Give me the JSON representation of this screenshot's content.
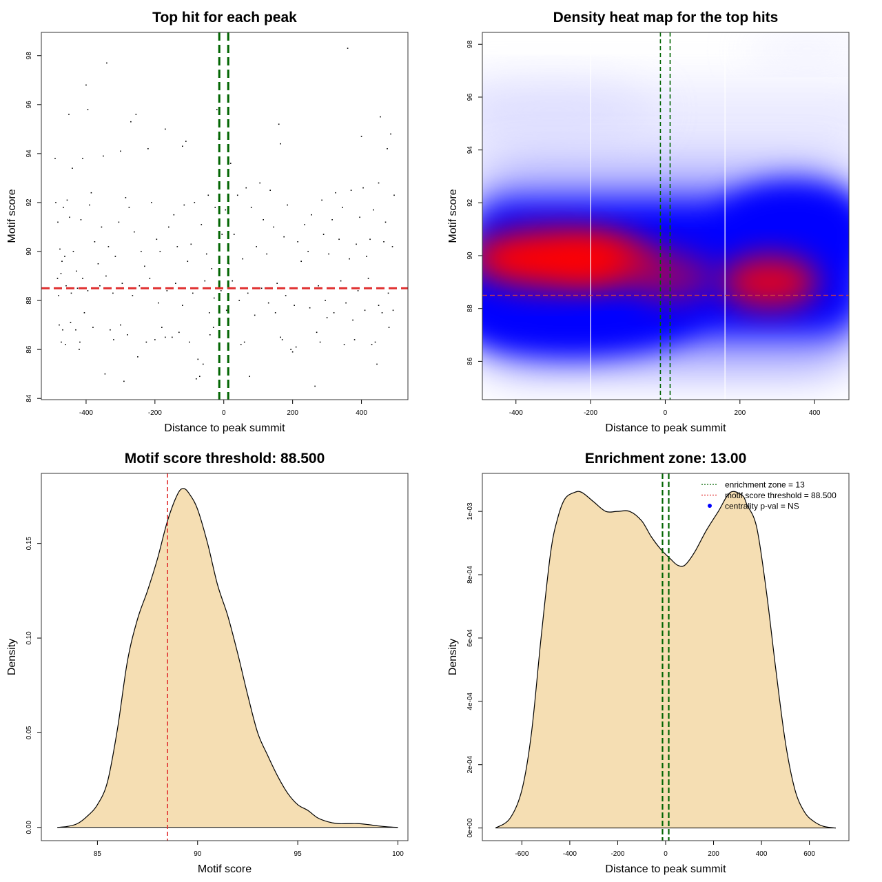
{
  "chart_data": [
    {
      "id": "scatter",
      "type": "scatter",
      "title": "Top hit for each peak",
      "xlabel": "Distance to peak summit",
      "ylabel": "Motif score",
      "xlim": [
        -530,
        535
      ],
      "ylim": [
        83.95,
        98.95
      ],
      "xticks": [
        -400,
        -200,
        0,
        200,
        400
      ],
      "xtick_labels": [
        "-400",
        "-200",
        "0",
        "200",
        "400"
      ],
      "yticks": [
        84,
        86,
        88,
        90,
        92,
        94,
        96,
        98
      ],
      "ytick_labels": [
        "84",
        "86",
        "88",
        "90",
        "92",
        "94",
        "96",
        "98"
      ],
      "vlines": [
        {
          "x": -13,
          "color": "#006400"
        },
        {
          "x": 13,
          "color": "#006400"
        }
      ],
      "hlines": [
        {
          "y": 88.5,
          "color": "#e03030"
        }
      ],
      "points": [
        [
          -490,
          93.8
        ],
        [
          -470,
          89.6
        ],
        [
          -450,
          95.6
        ],
        [
          -440,
          93.4
        ],
        [
          -410,
          93.8
        ],
        [
          -400,
          96.8
        ],
        [
          -395,
          95.8
        ],
        [
          -385,
          92.4
        ],
        [
          -350,
          93.9
        ],
        [
          -340,
          97.7
        ],
        [
          -300,
          94.1
        ],
        [
          -270,
          95.3
        ],
        [
          -255,
          95.6
        ],
        [
          -220,
          94.2
        ],
        [
          -170,
          95.0
        ],
        [
          -120,
          94.3
        ],
        [
          -110,
          94.5
        ],
        [
          -20,
          95.8
        ],
        [
          -15,
          94.6
        ],
        [
          20,
          93.6
        ],
        [
          160,
          95.2
        ],
        [
          165,
          94.4
        ],
        [
          360,
          98.3
        ],
        [
          400,
          94.7
        ],
        [
          455,
          95.5
        ],
        [
          475,
          94.2
        ],
        [
          485,
          94.8
        ],
        [
          -480,
          88.2
        ],
        [
          -478,
          87.0
        ],
        [
          -472,
          86.3
        ],
        [
          -468,
          86.8
        ],
        [
          -460,
          86.2
        ],
        [
          -445,
          87.1
        ],
        [
          -430,
          86.8
        ],
        [
          -420,
          86.0
        ],
        [
          -418,
          86.3
        ],
        [
          -405,
          87.5
        ],
        [
          -380,
          86.9
        ],
        [
          -345,
          85.0
        ],
        [
          -330,
          86.8
        ],
        [
          -320,
          86.4
        ],
        [
          -300,
          87.0
        ],
        [
          -290,
          84.7
        ],
        [
          -280,
          86.6
        ],
        [
          -250,
          85.7
        ],
        [
          -225,
          86.3
        ],
        [
          -200,
          86.4
        ],
        [
          -180,
          86.9
        ],
        [
          -170,
          86.5
        ],
        [
          -150,
          86.5
        ],
        [
          -130,
          86.7
        ],
        [
          -100,
          86.3
        ],
        [
          -80,
          84.8
        ],
        [
          -75,
          85.6
        ],
        [
          -70,
          84.9
        ],
        [
          -60,
          85.4
        ],
        [
          -40,
          86.6
        ],
        [
          -30,
          86.9
        ],
        [
          50,
          86.2
        ],
        [
          60,
          86.3
        ],
        [
          75,
          84.9
        ],
        [
          150,
          87.5
        ],
        [
          165,
          86.5
        ],
        [
          170,
          86.4
        ],
        [
          195,
          86.0
        ],
        [
          200,
          85.9
        ],
        [
          210,
          86.1
        ],
        [
          265,
          84.5
        ],
        [
          270,
          86.7
        ],
        [
          280,
          86.3
        ],
        [
          300,
          87.3
        ],
        [
          350,
          86.2
        ],
        [
          375,
          87.2
        ],
        [
          380,
          86.4
        ],
        [
          430,
          86.2
        ],
        [
          440,
          86.3
        ],
        [
          445,
          85.4
        ],
        [
          460,
          87.5
        ],
        [
          480,
          86.9
        ],
        [
          -488,
          92.0
        ],
        [
          -482,
          91.2
        ],
        [
          -476,
          90.1
        ],
        [
          -466,
          91.8
        ],
        [
          -462,
          89.8
        ],
        [
          -455,
          92.1
        ],
        [
          -448,
          91.4
        ],
        [
          -437,
          90.0
        ],
        [
          -428,
          89.2
        ],
        [
          -415,
          91.3
        ],
        [
          -390,
          91.9
        ],
        [
          -375,
          90.4
        ],
        [
          -365,
          89.5
        ],
        [
          -355,
          91.0
        ],
        [
          -335,
          90.2
        ],
        [
          -315,
          89.8
        ],
        [
          -305,
          91.2
        ],
        [
          -285,
          92.2
        ],
        [
          -275,
          91.8
        ],
        [
          -260,
          90.8
        ],
        [
          -240,
          90.0
        ],
        [
          -230,
          89.4
        ],
        [
          -210,
          92.0
        ],
        [
          -195,
          90.5
        ],
        [
          -185,
          90.0
        ],
        [
          -160,
          91.0
        ],
        [
          -145,
          91.5
        ],
        [
          -135,
          90.2
        ],
        [
          -115,
          91.9
        ],
        [
          -105,
          89.6
        ],
        [
          -95,
          90.3
        ],
        [
          -85,
          92.0
        ],
        [
          -65,
          91.1
        ],
        [
          -50,
          89.9
        ],
        [
          -45,
          92.3
        ],
        [
          -35,
          89.3
        ],
        [
          -25,
          91.8
        ],
        [
          -5,
          90.7
        ],
        [
          5,
          91.7
        ],
        [
          15,
          89.5
        ],
        [
          30,
          90.7
        ],
        [
          40,
          92.3
        ],
        [
          55,
          89.7
        ],
        [
          65,
          92.6
        ],
        [
          80,
          91.8
        ],
        [
          95,
          90.2
        ],
        [
          105,
          92.8
        ],
        [
          115,
          91.3
        ],
        [
          125,
          89.9
        ],
        [
          135,
          92.5
        ],
        [
          145,
          91.0
        ],
        [
          175,
          90.6
        ],
        [
          185,
          91.9
        ],
        [
          215,
          90.4
        ],
        [
          225,
          89.6
        ],
        [
          235,
          91.1
        ],
        [
          245,
          90.0
        ],
        [
          255,
          91.5
        ],
        [
          285,
          92.1
        ],
        [
          290,
          90.7
        ],
        [
          305,
          89.9
        ],
        [
          315,
          91.3
        ],
        [
          325,
          92.4
        ],
        [
          335,
          90.5
        ],
        [
          345,
          91.8
        ],
        [
          365,
          89.7
        ],
        [
          370,
          92.5
        ],
        [
          385,
          90.3
        ],
        [
          395,
          91.4
        ],
        [
          405,
          92.6
        ],
        [
          415,
          89.8
        ],
        [
          425,
          90.5
        ],
        [
          435,
          91.7
        ],
        [
          450,
          92.8
        ],
        [
          465,
          90.4
        ],
        [
          470,
          91.2
        ],
        [
          490,
          90.2
        ],
        [
          495,
          92.3
        ],
        [
          -483,
          88.9
        ],
        [
          -473,
          89.1
        ],
        [
          -458,
          88.6
        ],
        [
          -443,
          88.3
        ],
        [
          -425,
          88.5
        ],
        [
          -410,
          88.9
        ],
        [
          -395,
          88.4
        ],
        [
          -360,
          88.6
        ],
        [
          -342,
          89.0
        ],
        [
          -322,
          88.3
        ],
        [
          -295,
          88.7
        ],
        [
          -265,
          88.2
        ],
        [
          -245,
          88.6
        ],
        [
          -215,
          88.9
        ],
        [
          -190,
          87.9
        ],
        [
          -165,
          88.4
        ],
        [
          -140,
          88.7
        ],
        [
          -120,
          87.8
        ],
        [
          -90,
          88.3
        ],
        [
          -55,
          88.8
        ],
        [
          -42,
          87.5
        ],
        [
          -28,
          88.1
        ],
        [
          -8,
          88.4
        ],
        [
          8,
          87.6
        ],
        [
          25,
          88.8
        ],
        [
          45,
          88.0
        ],
        [
          70,
          88.3
        ],
        [
          90,
          87.4
        ],
        [
          110,
          88.5
        ],
        [
          130,
          87.9
        ],
        [
          155,
          88.7
        ],
        [
          180,
          88.2
        ],
        [
          205,
          87.8
        ],
        [
          230,
          88.5
        ],
        [
          250,
          87.7
        ],
        [
          275,
          88.6
        ],
        [
          295,
          88.0
        ],
        [
          320,
          87.5
        ],
        [
          340,
          88.8
        ],
        [
          355,
          87.9
        ],
        [
          390,
          88.4
        ],
        [
          410,
          87.6
        ],
        [
          420,
          88.9
        ],
        [
          450,
          87.8
        ],
        [
          478,
          88.3
        ],
        [
          492,
          87.6
        ]
      ]
    },
    {
      "id": "heatmap",
      "type": "heatmap",
      "title": "Density heat map for the top hits",
      "xlabel": "Distance to peak summit",
      "ylabel": "Motif score",
      "xlim": [
        -490,
        492
      ],
      "ylim": [
        84.55,
        98.45
      ],
      "xticks": [
        -400,
        -200,
        0,
        200,
        400
      ],
      "xtick_labels": [
        "-400",
        "-200",
        "0",
        "200",
        "400"
      ],
      "yticks": [
        86,
        88,
        90,
        92,
        94,
        96,
        98
      ],
      "ytick_labels": [
        "86",
        "88",
        "90",
        "92",
        "94",
        "96",
        "98"
      ],
      "vlines": [
        {
          "x": -13,
          "color": "#006400"
        },
        {
          "x": 13,
          "color": "#006400"
        }
      ],
      "hlines": [
        {
          "y": 88.5,
          "color": "#d04040"
        }
      ],
      "white_lines": [
        -200,
        160
      ],
      "palette": [
        "#ffffff",
        "#0000ff",
        "#ff0000"
      ],
      "density_peaks": [
        {
          "x": -300,
          "y": 89.9,
          "weight": 1.0
        },
        {
          "x": -150,
          "y": 89.8,
          "weight": 0.6
        },
        {
          "x": 280,
          "y": 89.0,
          "weight": 0.85
        },
        {
          "x": 20,
          "y": 89.2,
          "weight": 0.45
        }
      ]
    },
    {
      "id": "score_density",
      "type": "area",
      "title": "Motif score threshold: 88.500",
      "xlabel": "Motif score",
      "ylabel": "Density",
      "xlim": [
        82.2,
        100.5
      ],
      "ylim": [
        -0.007,
        0.187
      ],
      "xticks": [
        85,
        90,
        95,
        100
      ],
      "xtick_labels": [
        "85",
        "90",
        "95",
        "100"
      ],
      "yticks": [
        0,
        0.05,
        0.1,
        0.15
      ],
      "ytick_labels": [
        "0.00",
        "0.05",
        "0.10",
        "0.15"
      ],
      "fill": "#f5deb3",
      "vlines": [
        {
          "x": 88.5,
          "color": "#e03030"
        }
      ],
      "x": [
        83,
        83.5,
        84,
        84.5,
        85,
        85.5,
        86,
        86.5,
        87,
        87.5,
        88,
        88.5,
        89,
        89.3,
        89.6,
        90,
        90.5,
        91,
        91.5,
        92,
        92.5,
        93,
        93.5,
        94,
        94.5,
        95,
        95.5,
        96,
        96.5,
        97,
        97.5,
        98,
        98.5,
        99,
        99.5,
        100
      ],
      "y": [
        0,
        0.0005,
        0.002,
        0.006,
        0.012,
        0.024,
        0.052,
        0.088,
        0.11,
        0.125,
        0.142,
        0.162,
        0.176,
        0.179,
        0.176,
        0.168,
        0.15,
        0.128,
        0.112,
        0.092,
        0.07,
        0.05,
        0.038,
        0.027,
        0.018,
        0.012,
        0.009,
        0.005,
        0.003,
        0.002,
        0.002,
        0.002,
        0.0015,
        0.0008,
        0.0003,
        0
      ]
    },
    {
      "id": "distance_density",
      "type": "area",
      "title": "Enrichment zone: 13.00",
      "xlabel": "Distance to peak summit",
      "ylabel": "Density",
      "xlim": [
        -765,
        765
      ],
      "ylim": [
        -4e-05,
        0.00112
      ],
      "xticks": [
        -600,
        -400,
        -200,
        0,
        200,
        400,
        600
      ],
      "xtick_labels": [
        "-600",
        "-400",
        "-200",
        "0",
        "200",
        "400",
        "600"
      ],
      "yticks": [
        0,
        0.0002,
        0.0004,
        0.0006,
        0.0008,
        0.001
      ],
      "ytick_labels": [
        "0e+00",
        "2e-04",
        "4e-04",
        "6e-04",
        "8e-04",
        "1e-03"
      ],
      "fill": "#f5deb3",
      "vlines": [
        {
          "x": -13,
          "color": "#006400"
        },
        {
          "x": 13,
          "color": "#006400"
        }
      ],
      "x": [
        -710,
        -650,
        -600,
        -560,
        -520,
        -480,
        -450,
        -420,
        -380,
        -350,
        -300,
        -250,
        -200,
        -150,
        -100,
        -60,
        -20,
        20,
        50,
        80,
        120,
        170,
        220,
        270,
        320,
        340,
        380,
        420,
        460,
        500,
        540,
        580,
        620,
        660,
        710
      ],
      "y": [
        0,
        3e-05,
        0.00012,
        0.0003,
        0.0006,
        0.00087,
        0.00098,
        0.00104,
        0.00106,
        0.00106,
        0.00103,
        0.001,
        0.001,
        0.001,
        0.00097,
        0.00092,
        0.00088,
        0.00085,
        0.00083,
        0.00083,
        0.00087,
        0.00094,
        0.001,
        0.00106,
        0.00105,
        0.00102,
        0.00095,
        0.00075,
        0.0005,
        0.00027,
        0.00012,
        5e-05,
        2e-05,
        5e-06,
        0
      ],
      "legend": {
        "position": "top-right",
        "items": [
          {
            "label": "enrichment zone = 13",
            "color": "#006400",
            "style": "dotted"
          },
          {
            "label": "motif score threshold = 88.500",
            "color": "#e03030",
            "style": "dotted"
          },
          {
            "label": "centrality p-val = NS",
            "color": "#0000ff",
            "style": "point"
          }
        ]
      }
    }
  ]
}
